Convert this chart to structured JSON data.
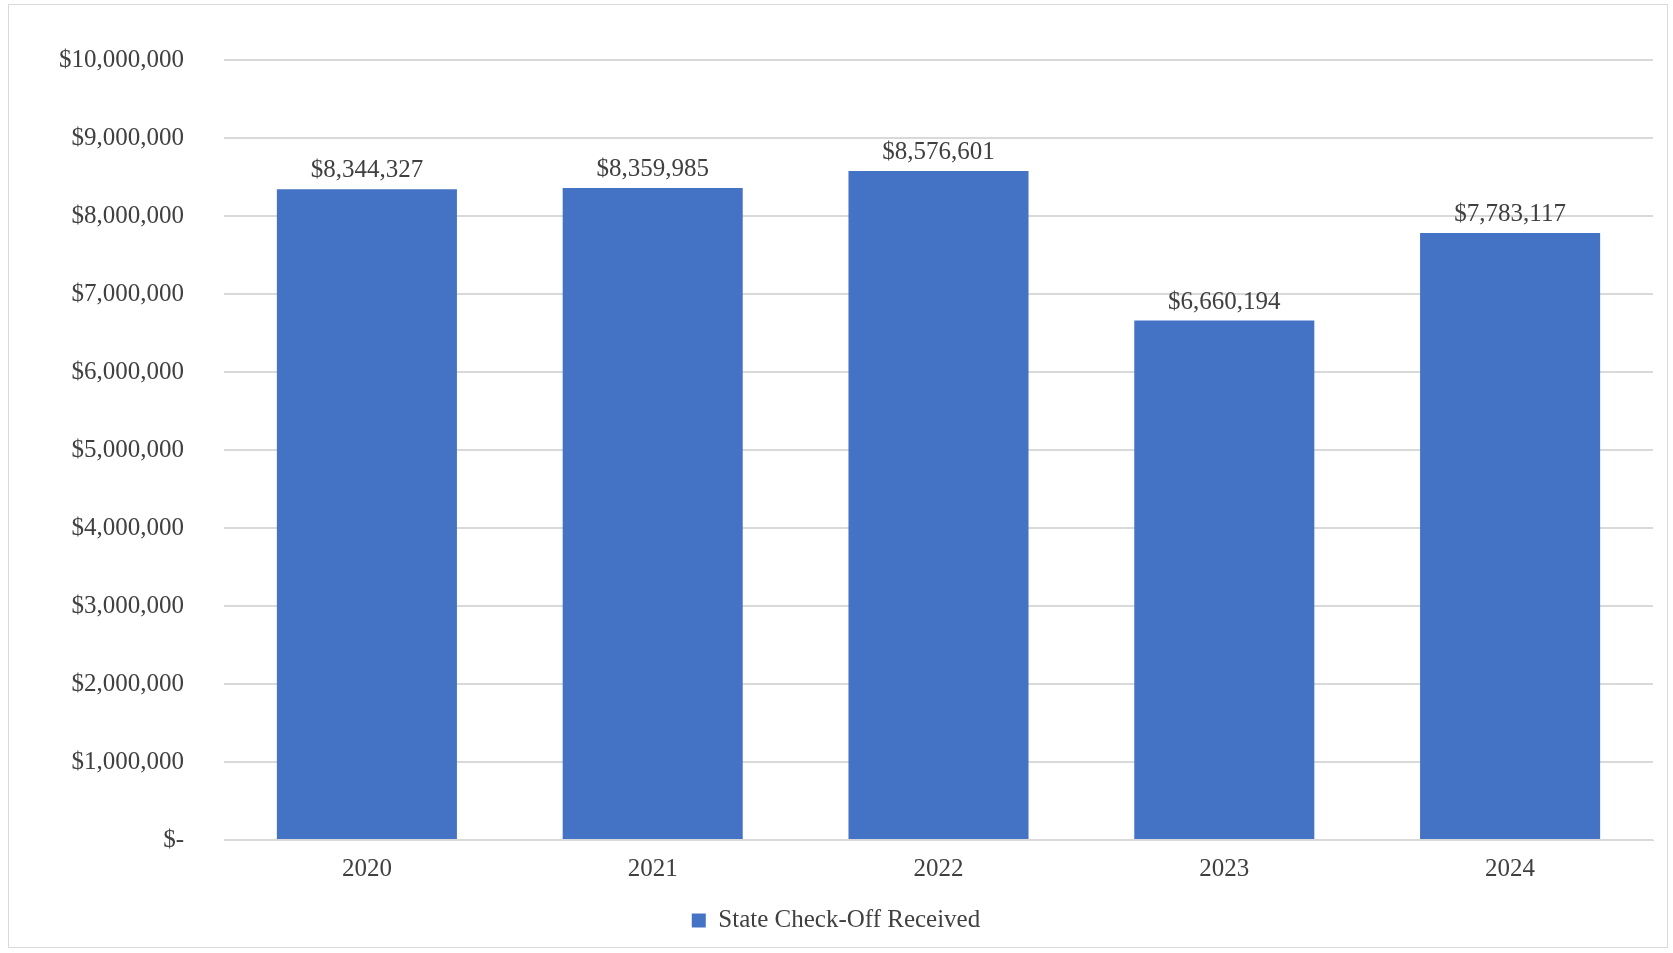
{
  "chart_data": {
    "type": "bar",
    "categories": [
      "2020",
      "2021",
      "2022",
      "2023",
      "2024"
    ],
    "series": [
      {
        "name": "State Check-Off Received",
        "color": "#4472c4",
        "values": [
          8344327,
          8359985,
          8576601,
          6660194,
          7783117
        ],
        "value_labels": [
          "$8,344,327",
          "$8,359,985",
          "$8,576,601",
          "$6,660,194",
          "$7,783,117"
        ]
      }
    ],
    "ylim": [
      0,
      10000000
    ],
    "yticks": [
      {
        "value": 0,
        "label": "$-"
      },
      {
        "value": 1000000,
        "label": "$1,000,000"
      },
      {
        "value": 2000000,
        "label": "$2,000,000"
      },
      {
        "value": 3000000,
        "label": "$3,000,000"
      },
      {
        "value": 4000000,
        "label": "$4,000,000"
      },
      {
        "value": 5000000,
        "label": "$5,000,000"
      },
      {
        "value": 6000000,
        "label": "$6,000,000"
      },
      {
        "value": 7000000,
        "label": "$7,000,000"
      },
      {
        "value": 8000000,
        "label": "$8,000,000"
      },
      {
        "value": 9000000,
        "label": "$9,000,000"
      },
      {
        "value": 10000000,
        "label": "$10,000,000"
      }
    ],
    "grid": "y",
    "legend": "bottom"
  }
}
